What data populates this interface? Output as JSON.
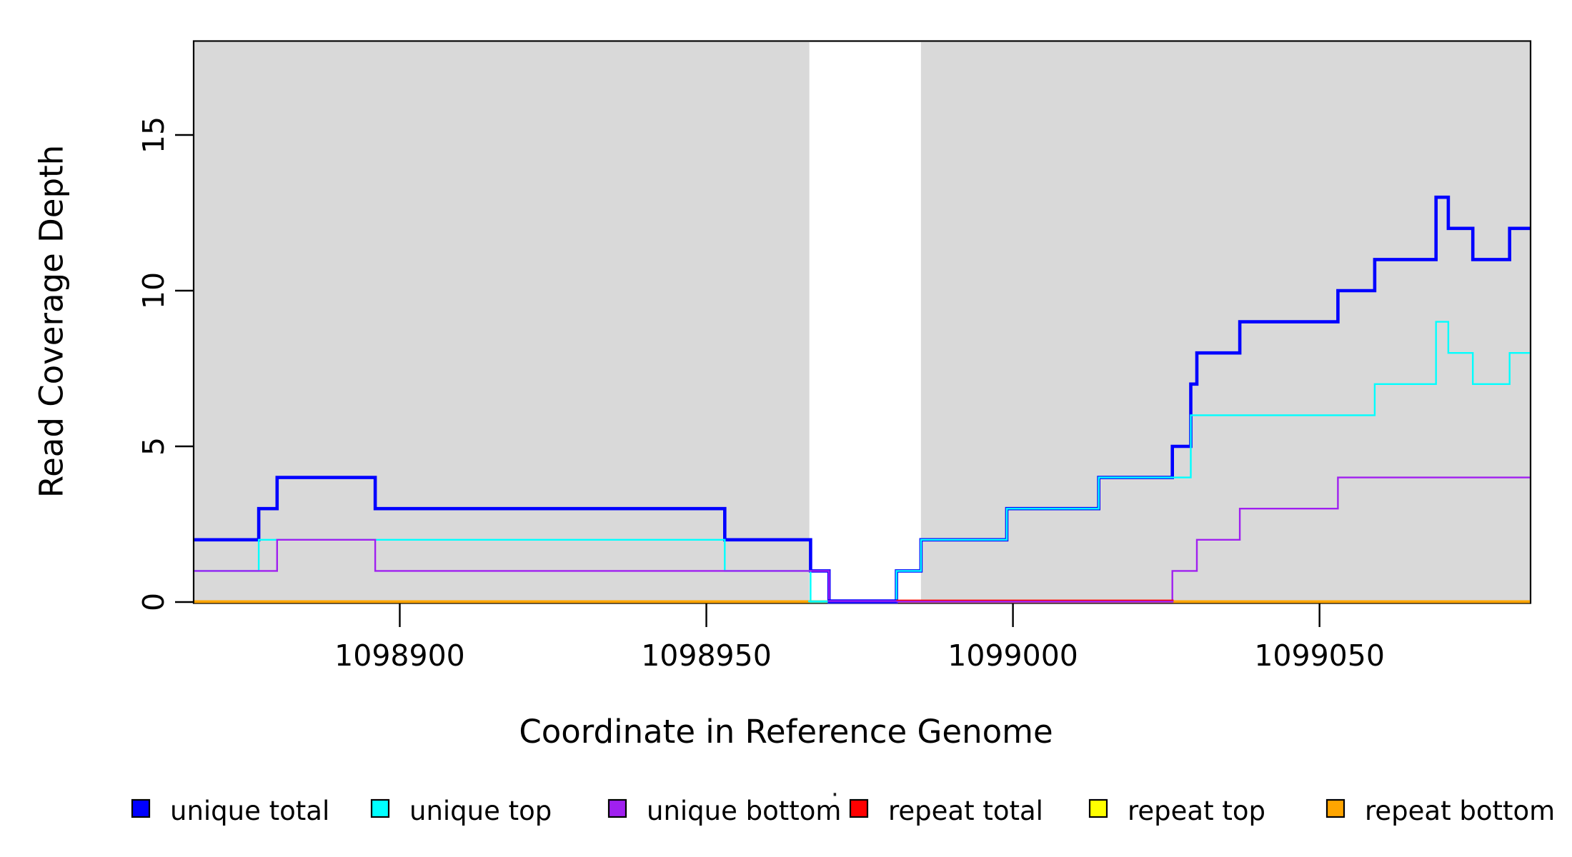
{
  "figure": {
    "background": "#FFFFFF"
  },
  "chart_data": {
    "type": "step",
    "title": "",
    "xlabel": "Coordinate in Reference Genome",
    "ylabel": "Read Coverage Depth",
    "xlim": [
      1098866.5,
      1099084.3
    ],
    "ylim": [
      0,
      18
    ],
    "grid": false,
    "shade_color": "#D9D9D9",
    "shaded_regions": [
      {
        "from": 1098866.5,
        "to": 1098966.8
      },
      {
        "from": 1098985.0,
        "to": 1099084.3
      }
    ],
    "x_ticks": [
      {
        "value": 1098900,
        "label": "1098900"
      },
      {
        "value": 1098950,
        "label": "1098950"
      },
      {
        "value": 1099000,
        "label": "1099000"
      },
      {
        "value": 1099050,
        "label": "1099050"
      }
    ],
    "y_ticks": [
      {
        "value": 0,
        "label": "0"
      },
      {
        "value": 5,
        "label": "5"
      },
      {
        "value": 10,
        "label": "10"
      },
      {
        "value": 15,
        "label": "15"
      }
    ],
    "series": [
      {
        "name": "repeat total",
        "color": "#FF0000",
        "linewidth": 2.4,
        "steps": [
          [
            1098866.5,
            0
          ]
        ]
      },
      {
        "name": "repeat top",
        "color": "#FFFF00",
        "linewidth": 2.4,
        "steps": [
          [
            1098866.5,
            0
          ]
        ]
      },
      {
        "name": "repeat bottom",
        "color": "#FFA500",
        "linewidth": 2.4,
        "steps": [
          [
            1098866.5,
            0
          ]
        ]
      },
      {
        "name": "unique total",
        "color": "#0000FF",
        "linewidth": 4.6,
        "steps": [
          [
            1098866.5,
            2
          ],
          [
            1098877,
            3
          ],
          [
            1098880,
            4
          ],
          [
            1098896,
            3
          ],
          [
            1098953,
            2
          ],
          [
            1098967,
            1
          ],
          [
            1098970,
            0
          ],
          [
            1098981,
            1
          ],
          [
            1098985,
            2
          ],
          [
            1098999,
            3
          ],
          [
            1099014,
            4
          ],
          [
            1099026,
            5
          ],
          [
            1099029,
            7
          ],
          [
            1099030,
            8
          ],
          [
            1099037,
            9
          ],
          [
            1099053,
            10
          ],
          [
            1099059,
            11
          ],
          [
            1099069,
            13
          ],
          [
            1099071,
            12
          ],
          [
            1099075,
            11
          ],
          [
            1099081,
            12
          ]
        ]
      },
      {
        "name": "unique top",
        "color": "#00FFFF",
        "linewidth": 2.4,
        "steps": [
          [
            1098866.5,
            1
          ],
          [
            1098877,
            2
          ],
          [
            1098953,
            1
          ],
          [
            1098967,
            0
          ],
          [
            1098981,
            1
          ],
          [
            1098985,
            2
          ],
          [
            1098999,
            3
          ],
          [
            1099014,
            4
          ],
          [
            1099029,
            6
          ],
          [
            1099059,
            7
          ],
          [
            1099069,
            9
          ],
          [
            1099071,
            8
          ],
          [
            1099075,
            7
          ],
          [
            1099081,
            8
          ]
        ]
      },
      {
        "name": "unique bottom",
        "color": "#A020F0",
        "linewidth": 2.4,
        "steps": [
          [
            1098866.5,
            1
          ],
          [
            1098880,
            2
          ],
          [
            1098896,
            1
          ],
          [
            1098970,
            0
          ],
          [
            1099026,
            1
          ],
          [
            1099030,
            2
          ],
          [
            1099037,
            3
          ],
          [
            1099053,
            4
          ]
        ]
      }
    ],
    "baseline_zero_overlaps": [
      {
        "color": "#FFA500",
        "from": 1098866.5,
        "to": 1099084.3,
        "dy": -1.0,
        "w": 3.0
      },
      {
        "color": "#00FFFF",
        "from": 1098966.6,
        "to": 1098970.3,
        "dy": -1.0,
        "w": 2.6
      },
      {
        "color": "#0000FF",
        "from": 1098969.8,
        "to": 1098981.2,
        "dy": -1.4,
        "w": 4.6
      },
      {
        "color": "#A020F0",
        "from": 1098969.8,
        "to": 1098981.2,
        "dy": -1.4,
        "w": 2.2
      },
      {
        "color": "#FF0000",
        "from": 1098981.0,
        "to": 1099026.2,
        "dy": -2.3,
        "w": 2.2
      },
      {
        "color": "#A020F0",
        "from": 1098981.0,
        "to": 1099026.2,
        "dy": -0.8,
        "w": 2.2
      }
    ],
    "legend": {
      "position": "bottom",
      "entries": [
        {
          "label": "unique total",
          "color": "#0000FF"
        },
        {
          "label": "unique top",
          "color": "#00FFFF"
        },
        {
          "label": "unique bottom",
          "color": "#A020F0"
        },
        {
          "label": "repeat total",
          "color": "#FF0000"
        },
        {
          "label": "repeat top",
          "color": "#FFFF00"
        },
        {
          "label": "repeat bottom",
          "color": "#FFA500"
        }
      ],
      "stray_dot": "·"
    }
  }
}
